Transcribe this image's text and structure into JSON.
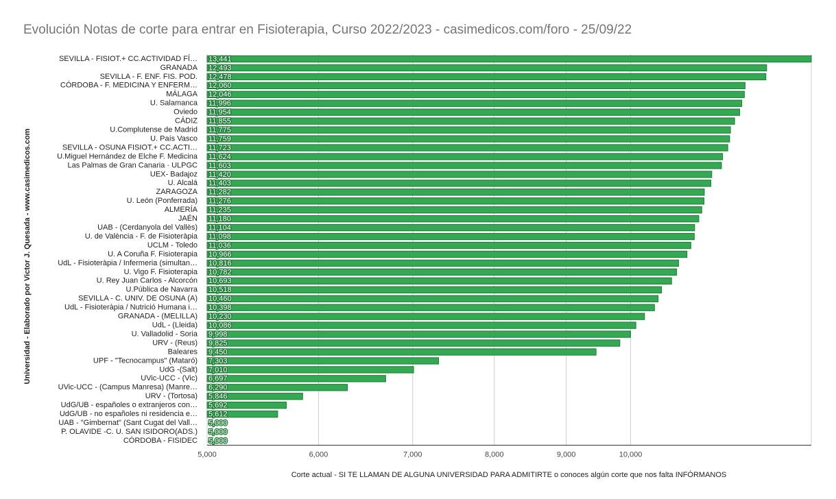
{
  "chart_data": {
    "type": "bar",
    "orientation": "horizontal",
    "title": "Evolución Notas de corte para entrar en Fisioterapia, Curso 2022/2023 - casimedicos.com/foro - 25/09/22",
    "x_label": "Corte actual - SI TE LLAMAN DE ALGUNA UNIVERSIDAD PARA ADMITIRTE o conoces algún corte que nos falta INFÓRMANOS",
    "y_label": "Universidad  - Elaborado por Victor J. Quesada - www.casimedicos.com",
    "categories": [
      "SEVILLA - FISIOT.+ CC.ACTIVIDAD FÍ…",
      "GRANADA",
      "SEVILLA - F. ENF. FIS. POD.",
      "CÓRDOBA - F. MEDICINA Y ENFERM…",
      "MÁLAGA",
      "U. Salamanca",
      "Oviedo",
      "CÁDIZ",
      "U.Complutense de Madrid",
      "U. País Vasco",
      "SEVILLA - OSUNA FISIOT.+ CC.ACTI…",
      "U.Miguel Hernández de Elche F. Medicina",
      "Las Palmas de Gran Canaria · ULPGC",
      "UEX- Badajoz",
      "U. Alcalá",
      "ZARAGOZA",
      "U. León (Ponferrada)",
      "ALMERÍA",
      "JAÉN",
      "UAB - (Cerdanyola del Vallès)",
      "U. de València - F. de Fisioteràpia",
      "UCLM - Toledo",
      "U. A Coruña F. Fisioterapia",
      "UdL - Fisioteràpia / Infermeria (simultan…",
      "U. Vigo F. Fisioterapia",
      "U. Rey Juan Carlos - Alcorcón",
      "U.Pública de Navarra",
      "SEVILLA - C. UNIV. DE OSUNA (A)",
      "UdL - Fisioteràpia / Nutrició Humana i…",
      "GRANADA - (MELILLA)",
      "UdL - (Lleida)",
      "U. Valladolid - Soria",
      "URV - (Reus)",
      "Baleares",
      "UPF - \"Tecnocampus\" (Mataró)",
      "UdG -(Salt)",
      "UVic-UCC - (Vic)",
      "UVic-UCC - (Campus Manresa) (Manre…",
      "URV - (Tortosa)",
      "UdG/UB - españoles o extranjeros con…",
      "UdG/UB - no españoles ni residencia e…",
      "UAB - \"Gimbernat\" (Sant Cugat del Vall…",
      "P. OLAVIDE -C. U. SAN ISIDORO(ADS.)",
      "CÓRDOBA - FISIDEC"
    ],
    "values": [
      13.441,
      12.493,
      12.478,
      12.06,
      12.046,
      11.996,
      11.954,
      11.855,
      11.775,
      11.759,
      11.723,
      11.624,
      11.603,
      11.42,
      11.403,
      11.282,
      11.276,
      11.235,
      11.18,
      11.104,
      11.098,
      11.036,
      10.966,
      10.816,
      10.782,
      10.693,
      10.518,
      10.46,
      10.398,
      10.23,
      10.086,
      9.998,
      9.825,
      9.45,
      7.303,
      7.01,
      6.697,
      6.29,
      5.846,
      5.692,
      5.612,
      5,
      5,
      5
    ],
    "value_labels": [
      "13,441",
      "12,493",
      "12,478",
      "12,060",
      "12,046",
      "11,996",
      "11,954",
      "11,855",
      "11,775",
      "11,759",
      "11,723",
      "11,624",
      "11,603",
      "11,420",
      "11,403",
      "11,282",
      "11,276",
      "11,235",
      "11,180",
      "11,104",
      "11,098",
      "11,036",
      "10,966",
      "10,816",
      "10,782",
      "10,693",
      "10,518",
      "10,460",
      "10,398",
      "10,230",
      "10,086",
      "9,998",
      "9,825",
      "9,450",
      "7,303",
      "7,010",
      "6,697",
      "6,290",
      "5,846",
      "5,692",
      "5,612",
      "5,000",
      "5,000",
      "5,000"
    ],
    "color": "#34a853",
    "xscale": "log",
    "xlim": [
      5,
      13.441
    ],
    "xticks": [
      {
        "value": 5,
        "label": "5,000"
      },
      {
        "value": 6,
        "label": "6,000"
      },
      {
        "value": 7,
        "label": "7,000"
      },
      {
        "value": 8,
        "label": "8,000"
      },
      {
        "value": 9,
        "label": "9,000"
      },
      {
        "value": 10,
        "label": "10,000"
      }
    ],
    "grid": true
  }
}
